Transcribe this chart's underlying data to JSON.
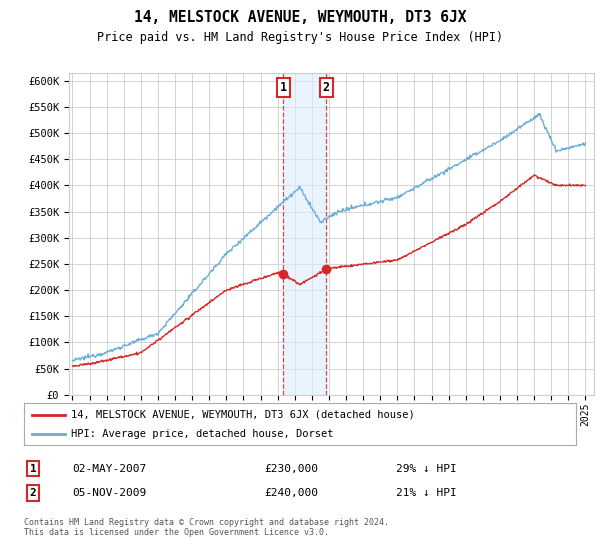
{
  "title": "14, MELSTOCK AVENUE, WEYMOUTH, DT3 6JX",
  "subtitle": "Price paid vs. HM Land Registry's House Price Index (HPI)",
  "ylabel_ticks": [
    "£0",
    "£50K",
    "£100K",
    "£150K",
    "£200K",
    "£250K",
    "£300K",
    "£350K",
    "£400K",
    "£450K",
    "£500K",
    "£550K",
    "£600K"
  ],
  "ytick_values": [
    0,
    50000,
    100000,
    150000,
    200000,
    250000,
    300000,
    350000,
    400000,
    450000,
    500000,
    550000,
    600000
  ],
  "ylim": [
    0,
    615000
  ],
  "xlim_start": 1994.8,
  "xlim_end": 2025.5,
  "hpi_color": "#6baed6",
  "price_color": "#d62728",
  "transaction1_date": 2007.33,
  "transaction1_price": 230000,
  "transaction2_date": 2009.83,
  "transaction2_price": 240000,
  "marker_color": "#d62728",
  "legend_label1": "14, MELSTOCK AVENUE, WEYMOUTH, DT3 6JX (detached house)",
  "legend_label2": "HPI: Average price, detached house, Dorset",
  "table_row1": [
    "1",
    "02-MAY-2007",
    "£230,000",
    "29% ↓ HPI"
  ],
  "table_row2": [
    "2",
    "05-NOV-2009",
    "£240,000",
    "21% ↓ HPI"
  ],
  "footnote": "Contains HM Land Registry data © Crown copyright and database right 2024.\nThis data is licensed under the Open Government Licence v3.0.",
  "background_color": "#ffffff",
  "grid_color": "#cccccc",
  "shade_color": "#ddeeff",
  "box_color": "#d62728"
}
